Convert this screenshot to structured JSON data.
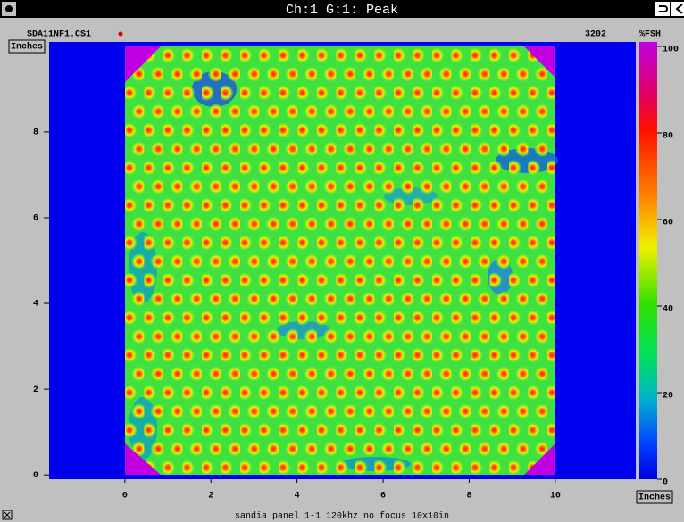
{
  "window": {
    "title": "Ch:1 G:1: Peak"
  },
  "header": {
    "file": "SDA11NF1.CS1",
    "count": "3202",
    "unit": "%FSH"
  },
  "plot": {
    "y_axis_label": "Inches",
    "x_axis_label": "Inches",
    "xlim": [
      -1.76,
      11.87
    ],
    "ylim": [
      -0.1,
      10.1
    ],
    "xticks": [
      0,
      2,
      4,
      6,
      8,
      10
    ],
    "yticks": [
      0,
      2,
      4,
      6,
      8
    ]
  },
  "colorbar": {
    "lim": [
      0,
      100
    ],
    "ticks": [
      0,
      20,
      40,
      60,
      80,
      100
    ]
  },
  "status": "sandia panel 1-1 120khz no focus 10x10in"
}
